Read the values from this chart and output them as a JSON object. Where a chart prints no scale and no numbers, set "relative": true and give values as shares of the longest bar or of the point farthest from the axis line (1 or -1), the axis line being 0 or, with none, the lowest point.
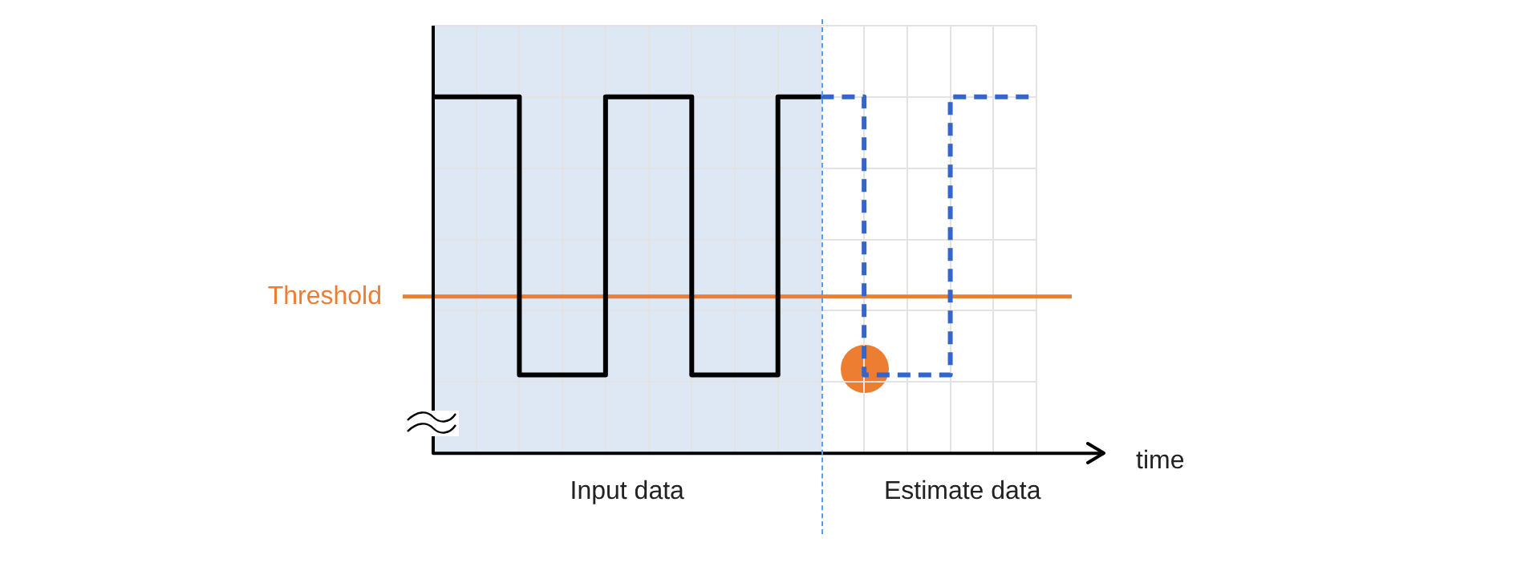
{
  "chart_data": {
    "type": "step",
    "relative": true,
    "xlabel": "time",
    "categories": [
      null,
      null,
      null,
      null,
      null,
      null,
      null,
      null,
      null,
      null,
      null,
      null,
      null,
      null,
      null
    ],
    "series": [
      {
        "color": "#000000",
        "line_style": "solid",
        "values": [
          1,
          1,
          0.22,
          0.22,
          1,
          1,
          0.22,
          0.22,
          1,
          1,
          null,
          null,
          null,
          null,
          null
        ]
      },
      {
        "color": "#3366cc",
        "line_style": "dashed",
        "values": [
          null,
          null,
          null,
          null,
          null,
          null,
          null,
          null,
          null,
          1,
          0.22,
          0.22,
          1,
          1,
          1
        ]
      }
    ],
    "ref_lines": [
      {
        "axis": "y",
        "value": 0.44,
        "label": "Threshold",
        "color": "#ed7d31",
        "line_style": "solid"
      }
    ],
    "annotations": [
      "Input data",
      "Estimate data"
    ],
    "grid": true,
    "legend": false
  }
}
